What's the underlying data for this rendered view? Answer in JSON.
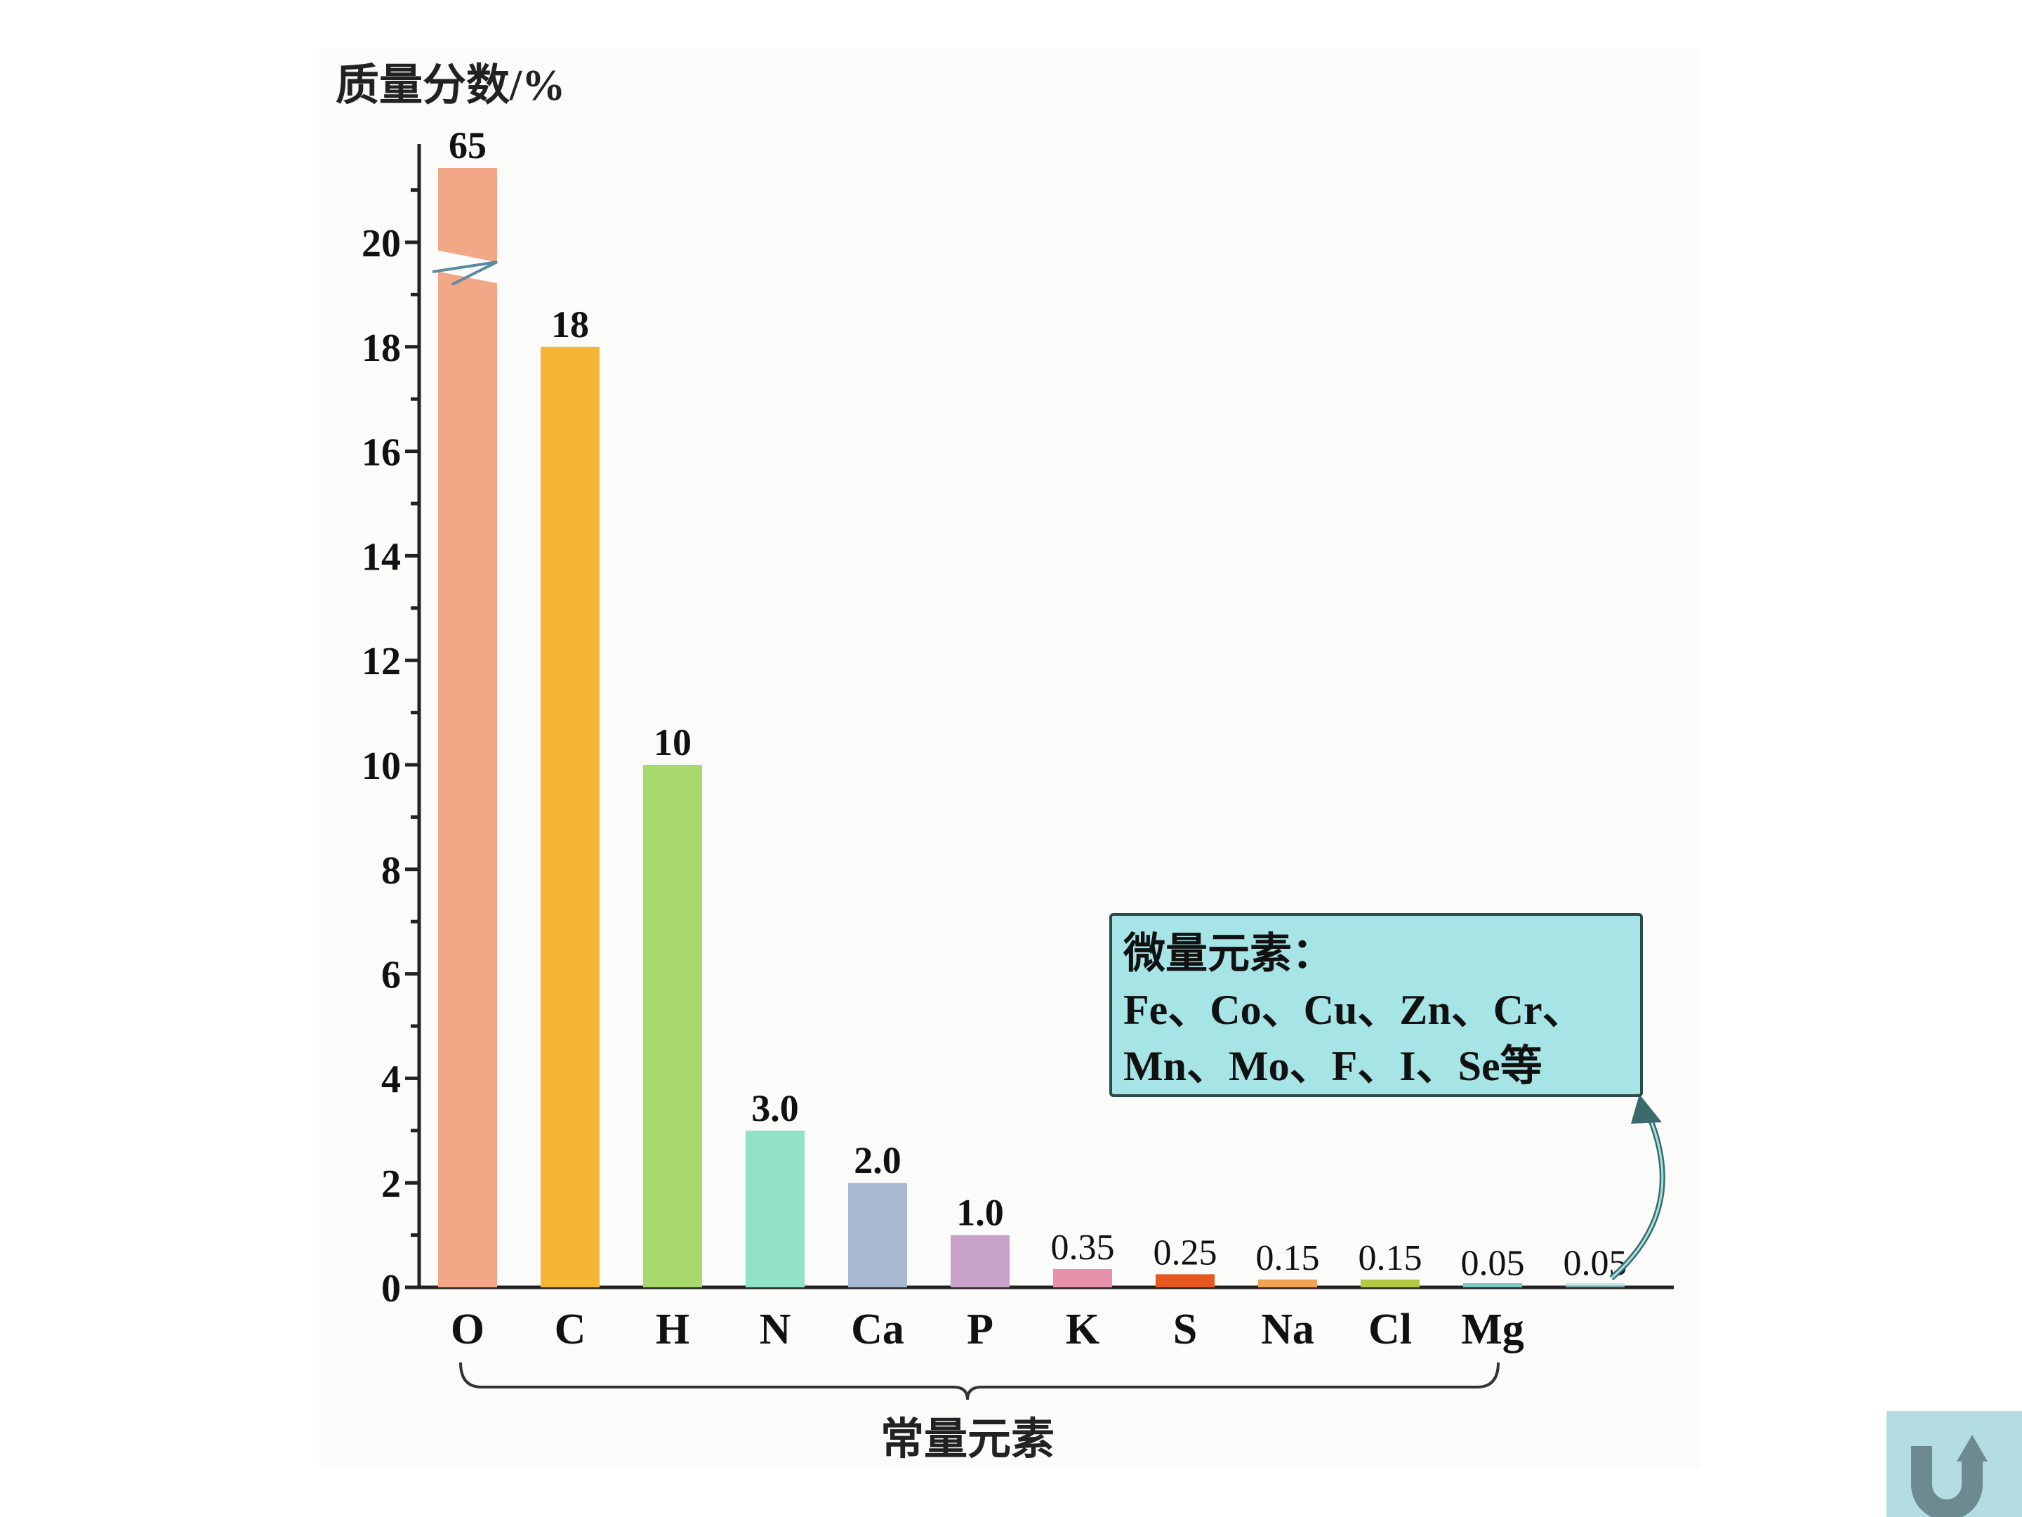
{
  "chart_data": {
    "type": "bar",
    "ylabel": "质量分数/%",
    "ylim": [
      0,
      21
    ],
    "y_axis_break": 20,
    "yticks": [
      0,
      2,
      4,
      6,
      8,
      10,
      12,
      14,
      16,
      18,
      20
    ],
    "grid": false,
    "categories": [
      "O",
      "C",
      "H",
      "N",
      "Ca",
      "P",
      "K",
      "S",
      "Na",
      "Cl",
      "Mg",
      ""
    ],
    "values": [
      65,
      18,
      10,
      3.0,
      2.0,
      1.0,
      0.35,
      0.25,
      0.15,
      0.15,
      0.05,
      0.05
    ],
    "value_labels": [
      "65",
      "18",
      "10",
      "3.0",
      "2.0",
      "1.0",
      "0.35",
      "0.25",
      "0.15",
      "0.15",
      "0.05",
      "0.05"
    ],
    "colors": [
      "#f2a886",
      "#f5b733",
      "#a8d96c",
      "#92e2c8",
      "#a9b9d2",
      "#c9a2c9",
      "#e891ab",
      "#e6581f",
      "#f1a352",
      "#b3c944",
      "#7fcac2",
      "#a8e0e0"
    ],
    "brace_label": "常量元素",
    "annotation": {
      "title": "微量元素：",
      "line1": "Fe、Co、Cu、Zn、Cr、",
      "line2": "Mn、Mo、F、I、Se等"
    }
  },
  "nav": {
    "back_icon": "u-turn-up-arrow-icon",
    "button_color": "#b4dde3",
    "icon_color": "#6d8a90"
  }
}
